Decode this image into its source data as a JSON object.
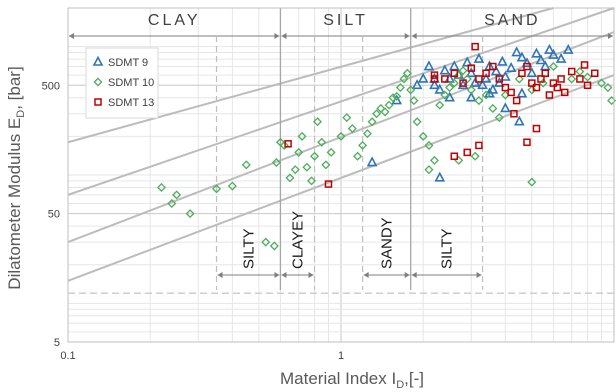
{
  "chart_data": {
    "type": "scatter",
    "xlabel": "Material Index I",
    "xlabel_sub": "D",
    "xlabel_unit": ",[-]",
    "ylabel": "Dilatometer Modulus E",
    "ylabel_sub": "D",
    "ylabel_unit": ", [bar]",
    "x_scale": "log",
    "y_scale": "log",
    "xlim": [
      0.1,
      10
    ],
    "ylim": [
      5,
      2000
    ],
    "x_ticks": [
      "0.1",
      "1"
    ],
    "y_ticks": [
      "5",
      "50",
      "500"
    ],
    "grid": true,
    "legend_position": "top-left",
    "soil_regions": [
      {
        "label": "CLAY",
        "from": 0.1,
        "to": 0.6
      },
      {
        "label": "SILT",
        "from": 0.6,
        "to": 1.8
      },
      {
        "label": "SAND",
        "from": 1.8,
        "to": 10
      }
    ],
    "sub_regions": [
      {
        "label": "SILTY",
        "from": 0.35,
        "to": 0.6
      },
      {
        "label": "CLAYEY",
        "from": 0.6,
        "to": 0.8
      },
      {
        "label": "SANDY",
        "from": 1.2,
        "to": 1.8
      },
      {
        "label": "SILTY",
        "from": 1.8,
        "to": 3.3
      }
    ],
    "reference_lines": [
      {
        "points": [
          [
            0.1,
            15
          ],
          [
            10,
            600
          ]
        ]
      },
      {
        "points": [
          [
            0.1,
            30
          ],
          [
            10,
            1300
          ]
        ]
      },
      {
        "points": [
          [
            0.1,
            70
          ],
          [
            10,
            2000
          ]
        ]
      },
      {
        "points": [
          [
            0.1,
            180
          ],
          [
            6,
            2000
          ]
        ]
      }
    ],
    "dashed_level": 12,
    "series": [
      {
        "name": "SDMT 9",
        "marker": "triangle",
        "color": "#2e75b6",
        "points": [
          [
            1.9,
            500
          ],
          [
            2.0,
            560
          ],
          [
            2.1,
            700
          ],
          [
            2.2,
            560
          ],
          [
            2.3,
            460
          ],
          [
            2.4,
            650
          ],
          [
            2.5,
            560
          ],
          [
            2.5,
            400
          ],
          [
            2.6,
            700
          ],
          [
            2.7,
            600
          ],
          [
            2.8,
            500
          ],
          [
            2.9,
            750
          ],
          [
            3.0,
            620
          ],
          [
            3.0,
            400
          ],
          [
            3.1,
            520
          ],
          [
            3.2,
            800
          ],
          [
            3.3,
            500
          ],
          [
            3.4,
            560
          ],
          [
            3.5,
            700
          ],
          [
            3.6,
            460
          ],
          [
            3.7,
            640
          ],
          [
            3.8,
            520
          ],
          [
            3.9,
            760
          ],
          [
            4.0,
            580
          ],
          [
            4.2,
            680
          ],
          [
            4.4,
            900
          ],
          [
            4.6,
            820
          ],
          [
            4.8,
            740
          ],
          [
            5.0,
            620
          ],
          [
            5.2,
            880
          ],
          [
            5.4,
            780
          ],
          [
            5.6,
            700
          ],
          [
            5.8,
            940
          ],
          [
            6.0,
            860
          ],
          [
            6.4,
            800
          ],
          [
            6.8,
            940
          ],
          [
            4.0,
            330
          ],
          [
            4.5,
            260
          ],
          [
            4.6,
            430
          ],
          [
            2.2,
            500
          ],
          [
            3.5,
            430
          ],
          [
            1.6,
            380
          ],
          [
            1.3,
            125
          ],
          [
            2.3,
            95
          ]
        ]
      },
      {
        "name": "SDMT 10",
        "marker": "diamond",
        "color": "#4ead5b",
        "points": [
          [
            0.22,
            80
          ],
          [
            0.24,
            60
          ],
          [
            0.25,
            70
          ],
          [
            0.28,
            50
          ],
          [
            0.35,
            78
          ],
          [
            0.4,
            82
          ],
          [
            0.45,
            120
          ],
          [
            0.53,
            30
          ],
          [
            0.57,
            28
          ],
          [
            0.58,
            125
          ],
          [
            0.6,
            180
          ],
          [
            0.62,
            170
          ],
          [
            0.65,
            95
          ],
          [
            0.68,
            110
          ],
          [
            0.7,
            150
          ],
          [
            0.72,
            200
          ],
          [
            0.75,
            115
          ],
          [
            0.78,
            90
          ],
          [
            0.8,
            140
          ],
          [
            0.82,
            260
          ],
          [
            0.85,
            180
          ],
          [
            0.88,
            120
          ],
          [
            0.92,
            150
          ],
          [
            1.0,
            200
          ],
          [
            1.05,
            280
          ],
          [
            1.1,
            230
          ],
          [
            1.15,
            140
          ],
          [
            1.2,
            170
          ],
          [
            1.25,
            210
          ],
          [
            1.3,
            260
          ],
          [
            1.35,
            300
          ],
          [
            1.4,
            330
          ],
          [
            1.45,
            310
          ],
          [
            1.5,
            350
          ],
          [
            1.55,
            400
          ],
          [
            1.6,
            410
          ],
          [
            1.65,
            480
          ],
          [
            1.7,
            560
          ],
          [
            1.75,
            620
          ],
          [
            1.8,
            460
          ],
          [
            1.85,
            380
          ],
          [
            1.9,
            260
          ],
          [
            2.0,
            200
          ],
          [
            2.1,
            170
          ],
          [
            2.2,
            130
          ],
          [
            2.3,
            350
          ],
          [
            2.4,
            420
          ],
          [
            2.5,
            480
          ],
          [
            2.6,
            520
          ],
          [
            2.7,
            600
          ],
          [
            2.8,
            650
          ],
          [
            2.9,
            560
          ],
          [
            3.0,
            460
          ],
          [
            3.2,
            380
          ],
          [
            3.4,
            420
          ],
          [
            3.6,
            330
          ],
          [
            3.8,
            280
          ],
          [
            4.0,
            420
          ],
          [
            4.5,
            560
          ],
          [
            5.0,
            460
          ],
          [
            5.5,
            520
          ],
          [
            6.0,
            700
          ],
          [
            7.0,
            560
          ],
          [
            7.5,
            640
          ],
          [
            8.0,
            580
          ],
          [
            9.0,
            520
          ],
          [
            9.5,
            480
          ],
          [
            9.8,
            380
          ],
          [
            2.1,
            110
          ],
          [
            2.7,
            130
          ],
          [
            3.1,
            140
          ],
          [
            5.0,
            88
          ]
        ]
      },
      {
        "name": "SDMT 13",
        "marker": "square",
        "color": "#c00000",
        "points": [
          [
            0.64,
            175
          ],
          [
            0.9,
            85
          ],
          [
            2.2,
            600
          ],
          [
            2.4,
            560
          ],
          [
            2.6,
            620
          ],
          [
            2.8,
            520
          ],
          [
            3.0,
            680
          ],
          [
            3.1,
            1000
          ],
          [
            3.2,
            560
          ],
          [
            3.4,
            620
          ],
          [
            3.6,
            700
          ],
          [
            3.8,
            560
          ],
          [
            4.0,
            480
          ],
          [
            4.2,
            440
          ],
          [
            4.4,
            380
          ],
          [
            4.6,
            620
          ],
          [
            4.8,
            700
          ],
          [
            5.0,
            520
          ],
          [
            5.2,
            480
          ],
          [
            5.4,
            560
          ],
          [
            5.6,
            620
          ],
          [
            5.8,
            420
          ],
          [
            6.0,
            520
          ],
          [
            6.2,
            480
          ],
          [
            6.4,
            560
          ],
          [
            6.6,
            440
          ],
          [
            7.0,
            640
          ],
          [
            7.5,
            560
          ],
          [
            8.0,
            500
          ],
          [
            8.5,
            620
          ],
          [
            4.3,
            300
          ],
          [
            5.2,
            230
          ],
          [
            4.8,
            180
          ],
          [
            3.2,
            170
          ],
          [
            2.9,
            150
          ],
          [
            2.6,
            140
          ],
          [
            2.2,
            560
          ],
          [
            7.8,
            720
          ]
        ]
      }
    ]
  }
}
